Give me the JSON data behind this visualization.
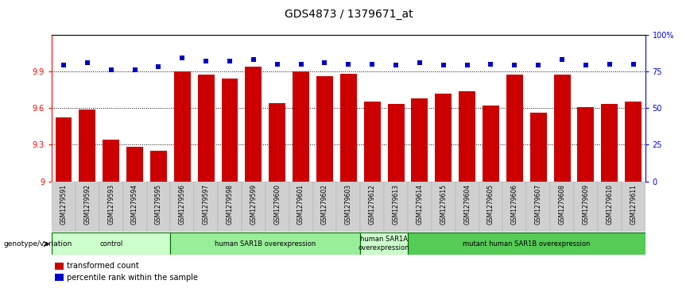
{
  "title": "GDS4873 / 1379671_at",
  "samples": [
    "GSM1279591",
    "GSM1279592",
    "GSM1279593",
    "GSM1279594",
    "GSM1279595",
    "GSM1279596",
    "GSM1279597",
    "GSM1279598",
    "GSM1279599",
    "GSM1279600",
    "GSM1279601",
    "GSM1279602",
    "GSM1279603",
    "GSM1279612",
    "GSM1279613",
    "GSM1279614",
    "GSM1279615",
    "GSM1279604",
    "GSM1279605",
    "GSM1279606",
    "GSM1279607",
    "GSM1279608",
    "GSM1279609",
    "GSM1279610",
    "GSM1279611"
  ],
  "bar_values": [
    9.52,
    9.59,
    9.34,
    9.28,
    9.25,
    9.9,
    9.87,
    9.84,
    9.94,
    9.64,
    9.9,
    9.86,
    9.88,
    9.65,
    9.63,
    9.68,
    9.72,
    9.74,
    9.62,
    9.87,
    9.56,
    9.87,
    9.61,
    9.63,
    9.65
  ],
  "percentile_values": [
    79,
    81,
    76,
    76,
    78,
    84,
    82,
    82,
    83,
    80,
    80,
    81,
    80,
    80,
    79,
    81,
    79,
    79,
    80,
    79,
    79,
    83,
    79,
    80,
    80
  ],
  "ylim_left": [
    9.0,
    10.2
  ],
  "ylim_right": [
    0,
    100
  ],
  "yticks_left": [
    9.0,
    9.3,
    9.6,
    9.9
  ],
  "ytick_labels_left": [
    "9",
    "9.3",
    "9.6",
    "9.9"
  ],
  "ytick_labels_right": [
    "0",
    "25",
    "50",
    "75",
    "100%"
  ],
  "yticks_right": [
    0,
    25,
    50,
    75,
    100
  ],
  "bar_color": "#cc0000",
  "dot_color": "#0000cc",
  "grid_lines": [
    9.3,
    9.6,
    9.9
  ],
  "groups": [
    {
      "label": "control",
      "start": 0,
      "end": 5,
      "color": "#ccffcc"
    },
    {
      "label": "human SAR1B overexpression",
      "start": 5,
      "end": 13,
      "color": "#99ee99"
    },
    {
      "label": "human SAR1A\noverexpression",
      "start": 13,
      "end": 15,
      "color": "#ccffcc"
    },
    {
      "label": "mutant human SAR1B overexpression",
      "start": 15,
      "end": 25,
      "color": "#55cc55"
    }
  ],
  "legend_items": [
    {
      "label": "transformed count",
      "color": "#cc0000"
    },
    {
      "label": "percentile rank within the sample",
      "color": "#0000cc"
    }
  ],
  "title_fontsize": 10,
  "tick_fontsize": 7,
  "genotype_label": "genotype/variation"
}
